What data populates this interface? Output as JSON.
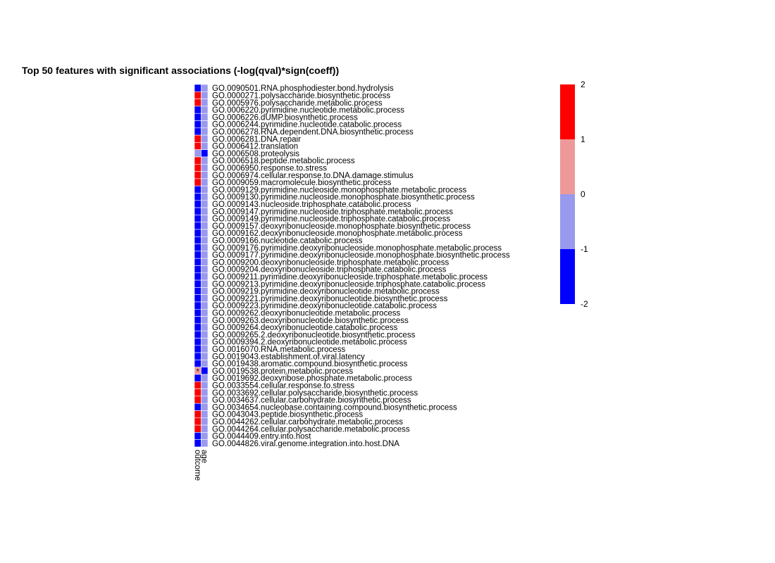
{
  "chart_data": {
    "type": "heatmap",
    "title": "Top 50 features with significant associations (-log(qval)*sign(coeff))",
    "columns": [
      "outcome",
      "age"
    ],
    "rows": [
      "GO.0090501.RNA.phosphodiester.bond.hydrolysis",
      "GO.0000271.polysaccharide.biosynthetic.process",
      "GO.0005976.polysaccharide.metabolic.process",
      "GO.0006220.pyrimidine.nucleotide.metabolic.process",
      "GO.0006226.dUMP.biosynthetic.process",
      "GO.0006244.pyrimidine.nucleotide.catabolic.process",
      "GO.0006278.RNA.dependent.DNA.biosynthetic.process",
      "GO.0006281.DNA.repair",
      "GO.0006412.translation",
      "GO.0006508.proteolysis",
      "GO.0006518.peptide.metabolic.process",
      "GO.0006950.response.to.stress",
      "GO.0006974.cellular.response.to.DNA.damage.stimulus",
      "GO.0009059.macromolecule.biosynthetic.process",
      "GO.0009129.pyrimidine.nucleoside.monophosphate.metabolic.process",
      "GO.0009130.pyrimidine.nucleoside.monophosphate.biosynthetic.process",
      "GO.0009143.nucleoside.triphosphate.catabolic.process",
      "GO.0009147.pyrimidine.nucleoside.triphosphate.metabolic.process",
      "GO.0009149.pyrimidine.nucleoside.triphosphate.catabolic.process",
      "GO.0009157.deoxyribonucleoside.monophosphate.biosynthetic.process",
      "GO.0009162.deoxyribonucleoside.monophosphate.metabolic.process",
      "GO.0009166.nucleotide.catabolic.process",
      "GO.0009176.pyrimidine.deoxyribonucleoside.monophosphate.metabolic.process",
      "GO.0009177.pyrimidine.deoxyribonucleoside.monophosphate.biosynthetic.process",
      "GO.0009200.deoxyribonucleoside.triphosphate.metabolic.process",
      "GO.0009204.deoxyribonucleoside.triphosphate.catabolic.process",
      "GO.0009211.pyrimidine.deoxyribonucleoside.triphosphate.metabolic.process",
      "GO.0009213.pyrimidine.deoxyribonucleoside.triphosphate.catabolic.process",
      "GO.0009219.pyrimidine.deoxyribonucleotide.metabolic.process",
      "GO.0009221.pyrimidine.deoxyribonucleotide.biosynthetic.process",
      "GO.0009223.pyrimidine.deoxyribonucleotide.catabolic.process",
      "GO.0009262.deoxyribonucleotide.metabolic.process",
      "GO.0009263.deoxyribonucleotide.biosynthetic.process",
      "GO.0009264.deoxyribonucleotide.catabolic.process",
      "GO.0009265.2.deoxyribonucleotide.biosynthetic.process",
      "GO.0009394.2.deoxyribonucleotide.metabolic.process",
      "GO.0016070.RNA.metabolic.process",
      "GO.0019043.establishment.of.viral.latency",
      "GO.0019438.aromatic.compound.biosynthetic.process",
      "GO.0019538.protein.metabolic.process",
      "GO.0019692.deoxyribose.phosphate.metabolic.process",
      "GO.0033554.cellular.response.to.stress",
      "GO.0033692.cellular.polysaccharide.biosynthetic.process",
      "GO.0034637.cellular.carbohydrate.biosynthetic.process",
      "GO.0034654.nucleobase.containing.compound.biosynthetic.process",
      "GO.0043043.peptide.biosynthetic.process",
      "GO.0044262.cellular.carbohydrate.metabolic.process",
      "GO.0044264.cellular.polysaccharide.metabolic.process",
      "GO.0044409.entry.into.host",
      "GO.0044826.viral.genome.integration.into.host.DNA"
    ],
    "values": [
      [
        -2,
        -0.5
      ],
      [
        2,
        -0.5
      ],
      [
        2,
        -0.5
      ],
      [
        -2,
        -0.5
      ],
      [
        -2,
        -0.5
      ],
      [
        -2,
        -0.5
      ],
      [
        -2,
        -0.5
      ],
      [
        2,
        -0.5
      ],
      [
        2,
        -0.5
      ],
      [
        -0.5,
        -2
      ],
      [
        2,
        -0.5
      ],
      [
        2,
        -0.5
      ],
      [
        2,
        -0.5
      ],
      [
        2,
        -0.5
      ],
      [
        -2,
        -0.5
      ],
      [
        -2,
        -0.5
      ],
      [
        -2,
        -0.5
      ],
      [
        -2,
        -0.5
      ],
      [
        -2,
        -0.5
      ],
      [
        -2,
        -0.5
      ],
      [
        -2,
        -0.5
      ],
      [
        -2,
        -0.5
      ],
      [
        -2,
        -0.5
      ],
      [
        -2,
        -0.5
      ],
      [
        -2,
        -0.5
      ],
      [
        -2,
        -0.5
      ],
      [
        -2,
        -0.5
      ],
      [
        -2,
        -0.5
      ],
      [
        -2,
        -0.5
      ],
      [
        -2,
        -0.5
      ],
      [
        -2,
        -0.5
      ],
      [
        -2,
        -0.5
      ],
      [
        -2,
        -0.5
      ],
      [
        -2,
        -0.5
      ],
      [
        -2,
        -0.5
      ],
      [
        -2,
        -0.5
      ],
      [
        -2,
        -0.5
      ],
      [
        -2,
        -0.5
      ],
      [
        -2,
        -0.5
      ],
      [
        0.5,
        -2
      ],
      [
        -2,
        -0.5
      ],
      [
        2,
        -0.5
      ],
      [
        2,
        -0.5
      ],
      [
        2,
        -0.5
      ],
      [
        -2,
        -0.5
      ],
      [
        2,
        -0.5
      ],
      [
        2,
        -0.5
      ],
      [
        2,
        -0.5
      ],
      [
        -2,
        -0.5
      ],
      [
        -2,
        -0.5
      ]
    ],
    "annotations": [
      {
        "row": 39,
        "col": 0,
        "text": "*"
      }
    ],
    "color_scale": {
      "breaks": [
        -2,
        -1,
        0,
        1,
        2
      ],
      "colors": [
        "#0000ff",
        "#9999ee",
        "#ee9999",
        "#ff0000"
      ]
    },
    "legend_ticks": [
      "2",
      "1",
      "0",
      "-1",
      "-2"
    ],
    "legend_position": "right"
  }
}
